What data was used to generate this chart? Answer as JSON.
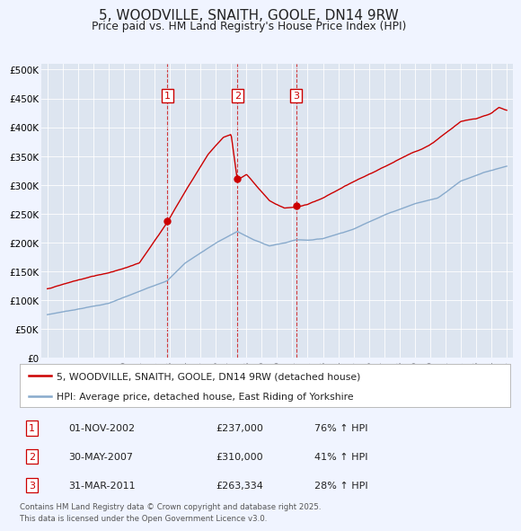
{
  "title": "5, WOODVILLE, SNAITH, GOOLE, DN14 9RW",
  "subtitle": "Price paid vs. HM Land Registry's House Price Index (HPI)",
  "background_color": "#f0f4ff",
  "plot_bg_color": "#dde5f0",
  "sale_color": "#cc0000",
  "hpi_color": "#88aacc",
  "sale_label": "5, WOODVILLE, SNAITH, GOOLE, DN14 9RW (detached house)",
  "hpi_label": "HPI: Average price, detached house, East Riding of Yorkshire",
  "sales": [
    {
      "num": 1,
      "date_str": "01-NOV-2002",
      "price": 237000,
      "pct": "76%",
      "date_x": 2002.84
    },
    {
      "num": 2,
      "date_str": "30-MAY-2007",
      "price": 310000,
      "pct": "41%",
      "date_x": 2007.41
    },
    {
      "num": 3,
      "date_str": "31-MAR-2011",
      "price": 263334,
      "pct": "28%",
      "date_x": 2011.25
    }
  ],
  "footer_line1": "Contains HM Land Registry data © Crown copyright and database right 2025.",
  "footer_line2": "This data is licensed under the Open Government Licence v3.0.",
  "ylim": [
    0,
    510000
  ],
  "yticks": [
    0,
    50000,
    100000,
    150000,
    200000,
    250000,
    300000,
    350000,
    400000,
    450000,
    500000
  ],
  "ytick_labels": [
    "£0",
    "£50K",
    "£100K",
    "£150K",
    "£200K",
    "£250K",
    "£300K",
    "£350K",
    "£400K",
    "£450K",
    "£500K"
  ],
  "xlim": [
    1994.6,
    2025.4
  ],
  "xticks": [
    1995,
    1996,
    1997,
    1998,
    1999,
    2000,
    2001,
    2002,
    2003,
    2004,
    2005,
    2006,
    2007,
    2008,
    2009,
    2010,
    2011,
    2012,
    2013,
    2014,
    2015,
    2016,
    2017,
    2018,
    2019,
    2020,
    2021,
    2022,
    2023,
    2024,
    2025
  ]
}
